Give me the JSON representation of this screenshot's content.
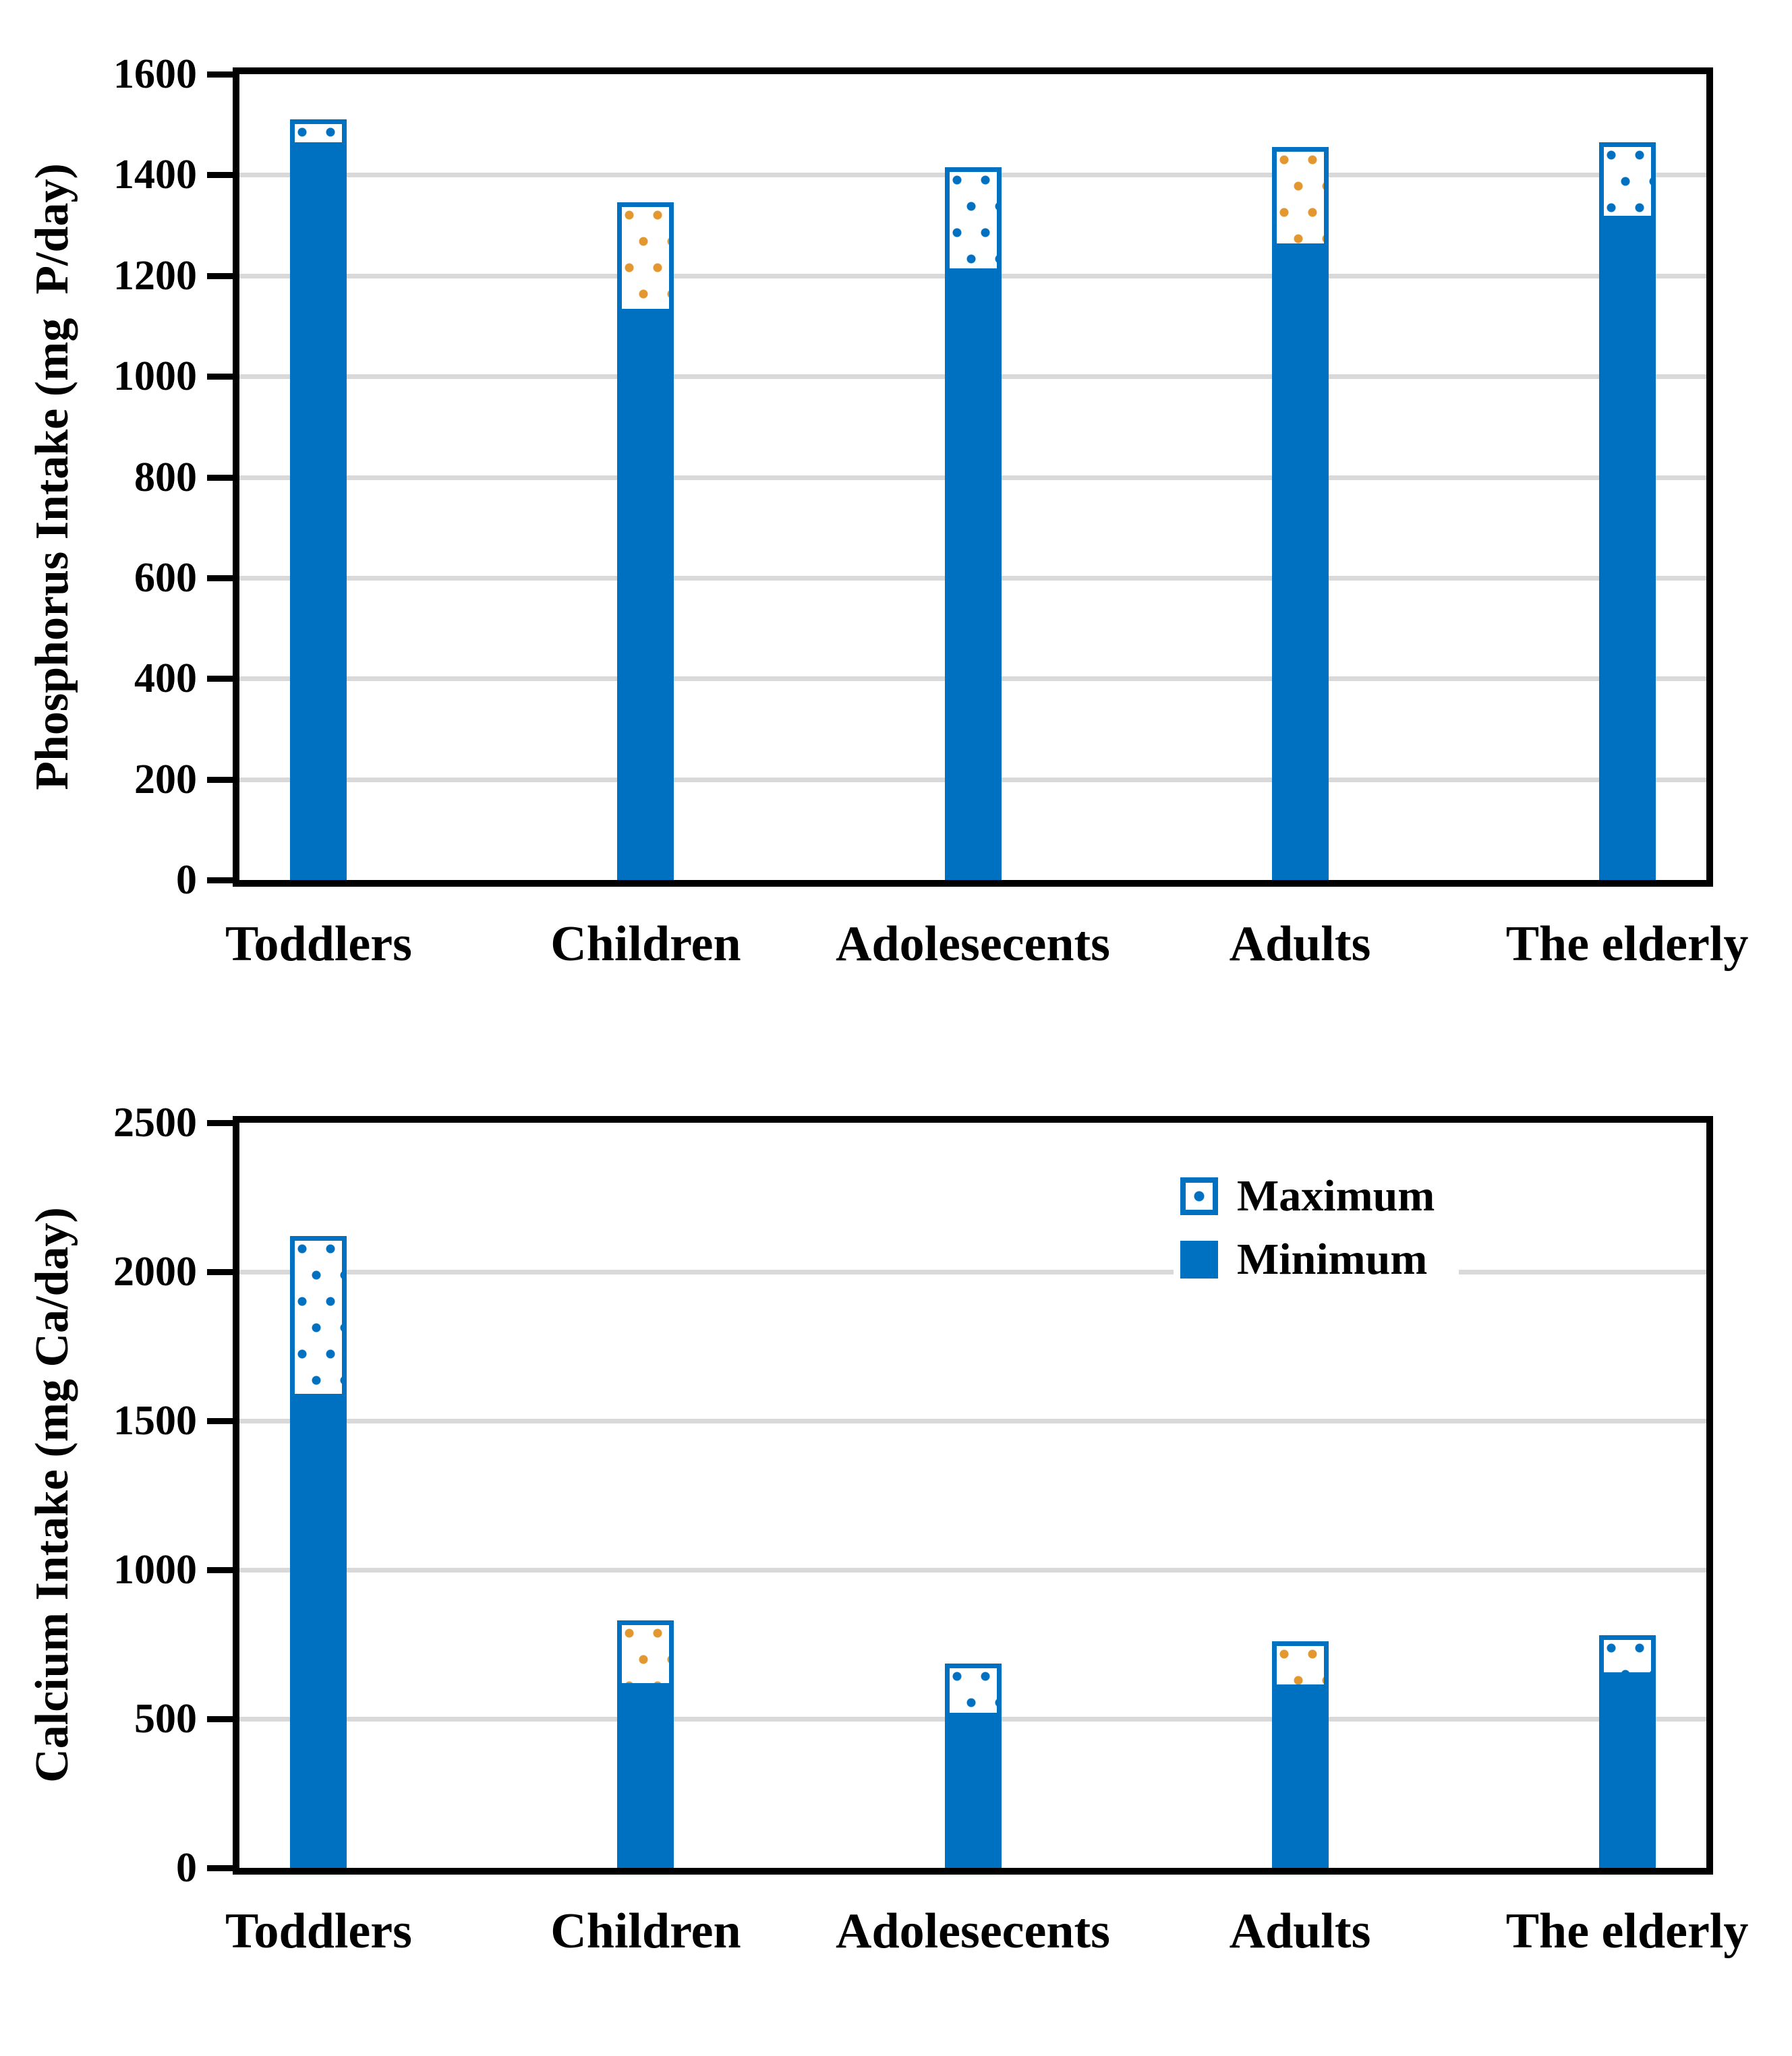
{
  "figure": {
    "description": "Two stacked vertical bar charts of nutrient intake ranges by age group"
  },
  "palette": {
    "bar_blue": "#0070C0",
    "dot_orange": "#E2972F",
    "grid_gray": "#D9D9D9",
    "axis_black": "#000000"
  },
  "chart_data": [
    {
      "type": "bar",
      "subtype": "range-stacked",
      "title": "",
      "ylabel": "Phosphorus Intake (mg  P/day)",
      "xlabel": "",
      "categories": [
        "Toddlers",
        "Children",
        "Adolesecents",
        "Adults",
        "The elderly"
      ],
      "series": [
        {
          "name": "Minimum",
          "values": [
            1455,
            1125,
            1205,
            1255,
            1310
          ]
        },
        {
          "name": "Maximum",
          "values": [
            1510,
            1345,
            1415,
            1455,
            1465
          ]
        }
      ],
      "ylim": [
        0,
        1600
      ],
      "ytick_step": 200,
      "ytick_labels": [
        "0",
        "200",
        "400",
        "600",
        "800",
        "1000",
        "1200",
        "1400",
        "1600"
      ],
      "grid": true,
      "legend_visible": false,
      "max_box_dot_colors": [
        "#0070C0",
        "#E2972F",
        "#0070C0",
        "#E2972F",
        "#0070C0"
      ]
    },
    {
      "type": "bar",
      "subtype": "range-stacked",
      "title": "",
      "ylabel": "Calcium Intake (mg Ca/day)",
      "xlabel": "",
      "categories": [
        "Toddlers",
        "Children",
        "Adolesecents",
        "Adults",
        "The elderly"
      ],
      "series": [
        {
          "name": "Minimum",
          "values": [
            1575,
            605,
            505,
            600,
            640
          ]
        },
        {
          "name": "Maximum",
          "values": [
            2120,
            830,
            685,
            760,
            780
          ]
        }
      ],
      "ylim": [
        0,
        2500
      ],
      "ytick_step": 500,
      "ytick_labels": [
        "0",
        "500",
        "1000",
        "1500",
        "2000",
        "2500"
      ],
      "grid": true,
      "legend": {
        "position": "inside-top-right",
        "entries": [
          "Maximum",
          "Minimum"
        ]
      },
      "max_box_dot_colors": [
        "#0070C0",
        "#E2972F",
        "#0070C0",
        "#E2972F",
        "#0070C0"
      ]
    }
  ]
}
